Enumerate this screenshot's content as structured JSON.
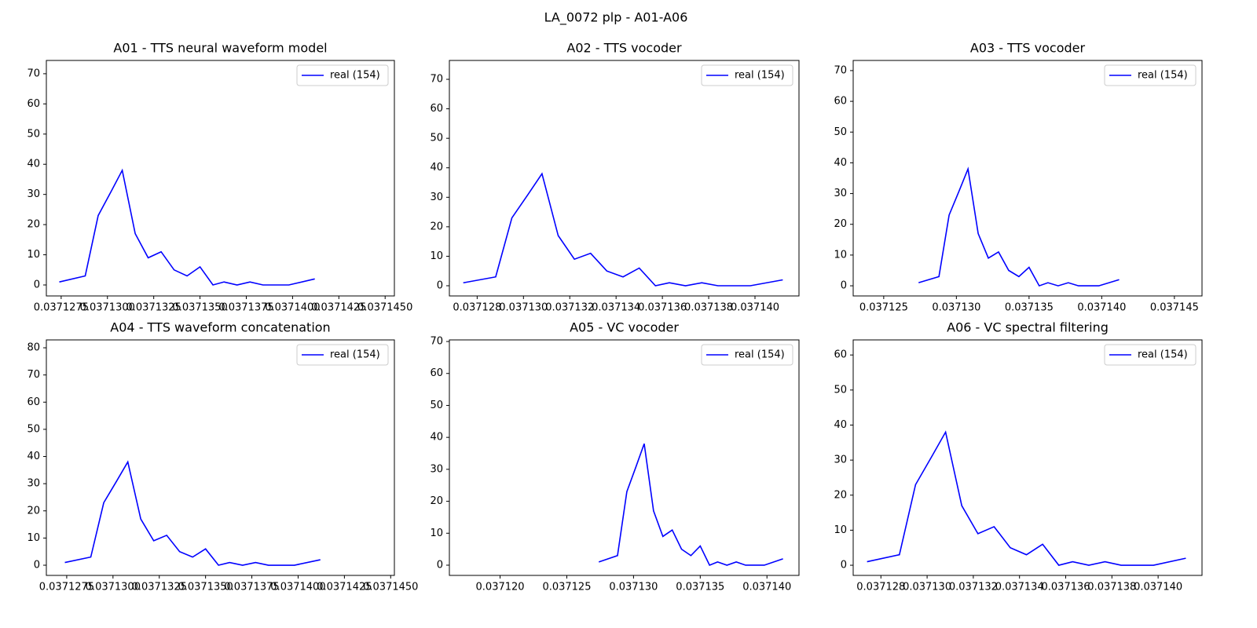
{
  "title": "LA_0072 plp - A01-A06",
  "chart_data": [
    {
      "type": "line",
      "title": "A01 - TTS neural waveform model",
      "x": [
        0.0371274,
        0.0371288,
        0.0371295,
        0.0371302,
        0.0371308,
        0.0371315,
        0.0371322,
        0.0371329,
        0.0371336,
        0.0371343,
        0.037135,
        0.0371357,
        0.0371363,
        0.037137,
        0.0371377,
        0.0371384,
        0.0371391,
        0.0371398,
        0.0371412
      ],
      "series": [
        {
          "name": "real (154)",
          "color": "#0000ff",
          "values": [
            1,
            3,
            23,
            31,
            38,
            17,
            9,
            11,
            5,
            3,
            6,
            0,
            1,
            0,
            1,
            0,
            0,
            0,
            2
          ]
        }
      ],
      "xlim": [
        0.0371267,
        0.0371455
      ],
      "ylim": [
        -3.64,
        74.4
      ],
      "xticks": [
        0.0371275,
        {
          "value": 0.03713,
          "label": "0.0371300"
        },
        0.0371325,
        {
          "value": 0.037135,
          "label": "0.0371350"
        },
        0.0371375,
        {
          "value": 0.03714,
          "label": "0.0371400"
        },
        0.0371425,
        {
          "value": 0.037145,
          "label": "0.0371450"
        }
      ],
      "yticks": [
        0,
        10,
        20,
        30,
        40,
        50,
        60,
        70
      ],
      "legend": "upper right"
    },
    {
      "type": "line",
      "title": "A02 - TTS vocoder",
      "x": [
        0.0371274,
        0.0371288,
        0.0371295,
        0.0371302,
        0.0371308,
        0.0371315,
        0.0371322,
        0.0371329,
        0.0371336,
        0.0371343,
        0.037135,
        0.0371357,
        0.0371363,
        0.037137,
        0.0371377,
        0.0371384,
        0.0371391,
        0.0371398,
        0.0371412
      ],
      "series": [
        {
          "name": "real (154)",
          "color": "#0000ff",
          "values": [
            1,
            3,
            23,
            31,
            38,
            17,
            9,
            11,
            5,
            3,
            6,
            0,
            1,
            0,
            1,
            0,
            0,
            0,
            2
          ]
        }
      ],
      "xlim": [
        0.0371268,
        0.0371419
      ],
      "ylim": [
        -3.46,
        76.4
      ],
      "xticks": [
        0.037128,
        {
          "value": 0.03713,
          "label": "0.037130"
        },
        0.037132,
        0.037134,
        0.037136,
        0.037138,
        {
          "value": 0.03714,
          "label": "0.037140"
        }
      ],
      "yticks": [
        0,
        10,
        20,
        30,
        40,
        50,
        60,
        70
      ],
      "legend": "upper right"
    },
    {
      "type": "line",
      "title": "A03 - TTS vocoder",
      "x": [
        0.0371274,
        0.0371288,
        0.0371295,
        0.0371302,
        0.0371308,
        0.0371315,
        0.0371322,
        0.0371329,
        0.0371336,
        0.0371343,
        0.037135,
        0.0371357,
        0.0371363,
        0.037137,
        0.0371377,
        0.0371384,
        0.0371391,
        0.0371398,
        0.0371412
      ],
      "series": [
        {
          "name": "real (154)",
          "color": "#0000ff",
          "values": [
            1,
            3,
            23,
            31,
            38,
            17,
            9,
            11,
            5,
            3,
            6,
            0,
            1,
            0,
            1,
            0,
            0,
            0,
            2
          ]
        }
      ],
      "xlim": [
        0.0371229,
        0.0371469
      ],
      "ylim": [
        -3.3,
        73.3
      ],
      "xticks": [
        0.037125,
        {
          "value": 0.03713,
          "label": "0.037130"
        },
        0.037135,
        {
          "value": 0.03714,
          "label": "0.037140"
        },
        0.037145
      ],
      "yticks": [
        0,
        10,
        20,
        30,
        40,
        50,
        60,
        70
      ],
      "legend": "upper right"
    },
    {
      "type": "line",
      "title": "A04 - TTS waveform concatenation",
      "x": [
        0.0371274,
        0.0371288,
        0.0371295,
        0.0371302,
        0.0371308,
        0.0371315,
        0.0371322,
        0.0371329,
        0.0371336,
        0.0371343,
        0.037135,
        0.0371357,
        0.0371363,
        0.037137,
        0.0371377,
        0.0371384,
        0.0371391,
        0.0371398,
        0.0371412
      ],
      "series": [
        {
          "name": "real (154)",
          "color": "#0000ff",
          "values": [
            1,
            3,
            23,
            31,
            38,
            17,
            9,
            11,
            5,
            3,
            6,
            0,
            1,
            0,
            1,
            0,
            0,
            0,
            2
          ]
        }
      ],
      "xlim": [
        0.0371264,
        0.0371452
      ],
      "ylim": [
        -3.75,
        82.9
      ],
      "xticks": [
        0.0371275,
        {
          "value": 0.03713,
          "label": "0.0371300"
        },
        0.0371325,
        {
          "value": 0.037135,
          "label": "0.0371350"
        },
        0.0371375,
        {
          "value": 0.03714,
          "label": "0.0371400"
        },
        0.0371425,
        {
          "value": 0.037145,
          "label": "0.0371450"
        }
      ],
      "yticks": [
        0,
        10,
        20,
        30,
        40,
        50,
        60,
        70,
        80
      ],
      "legend": "upper right"
    },
    {
      "type": "line",
      "title": "A05 - VC vocoder",
      "x": [
        0.0371274,
        0.0371288,
        0.0371295,
        0.0371302,
        0.0371308,
        0.0371315,
        0.0371322,
        0.0371329,
        0.0371336,
        0.0371343,
        0.037135,
        0.0371357,
        0.0371363,
        0.037137,
        0.0371377,
        0.0371384,
        0.0371391,
        0.0371398,
        0.0371412
      ],
      "series": [
        {
          "name": "real (154)",
          "color": "#0000ff",
          "values": [
            1,
            3,
            23,
            31,
            38,
            17,
            9,
            11,
            5,
            3,
            6,
            0,
            1,
            0,
            1,
            0,
            0,
            0,
            2
          ]
        }
      ],
      "xlim": [
        0.0371162,
        0.0371424
      ],
      "ylim": [
        -3.2,
        70.5
      ],
      "xticks": [
        {
          "value": 0.03712,
          "label": "0.037120"
        },
        0.037125,
        {
          "value": 0.03713,
          "label": "0.037130"
        },
        0.037135,
        {
          "value": 0.03714,
          "label": "0.037140"
        }
      ],
      "yticks": [
        0,
        10,
        20,
        30,
        40,
        50,
        60,
        70
      ],
      "legend": "upper right"
    },
    {
      "type": "line",
      "title": "A06 - VC spectral filtering",
      "x": [
        0.0371274,
        0.0371288,
        0.0371295,
        0.0371302,
        0.0371308,
        0.0371315,
        0.0371322,
        0.0371329,
        0.0371336,
        0.0371343,
        0.037135,
        0.0371357,
        0.0371363,
        0.037137,
        0.0371377,
        0.0371384,
        0.0371391,
        0.0371398,
        0.0371412
      ],
      "series": [
        {
          "name": "real (154)",
          "color": "#0000ff",
          "values": [
            1,
            3,
            23,
            31,
            38,
            17,
            9,
            11,
            5,
            3,
            6,
            0,
            1,
            0,
            1,
            0,
            0,
            0,
            2
          ]
        }
      ],
      "xlim": [
        0.0371268,
        0.0371419
      ],
      "ylim": [
        -2.9,
        64.3
      ],
      "xticks": [
        0.037128,
        {
          "value": 0.03713,
          "label": "0.037130"
        },
        0.037132,
        0.037134,
        0.037136,
        0.037138,
        {
          "value": 0.03714,
          "label": "0.037140"
        }
      ],
      "yticks": [
        0,
        10,
        20,
        30,
        40,
        50,
        60
      ],
      "legend": "upper right"
    }
  ]
}
